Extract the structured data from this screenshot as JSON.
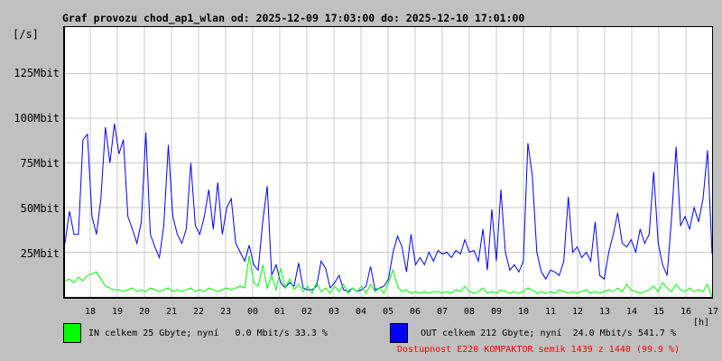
{
  "title": "Graf provozu chod_ap1_wlan od: 2025-12-09 17:03:00 do: 2025-12-10 17:01:00",
  "colors": {
    "background": "#c0c0c0",
    "plot_background": "#ffffff",
    "grid": "#c9c9c9",
    "border": "#000000",
    "in": "#00ff00",
    "out": "#0000ff",
    "availability_text": "#ff0000"
  },
  "y_axis": {
    "unit": "[/s]",
    "labels": [
      "125Mbit",
      "100Mbit",
      "75Mbit",
      "50Mbit",
      "25Mbit"
    ]
  },
  "x_axis": {
    "unit": "[h]",
    "labels": [
      "18",
      "19",
      "20",
      "21",
      "22",
      "23",
      "00",
      "01",
      "02",
      "03",
      "04",
      "05",
      "06",
      "07",
      "08",
      "09",
      "10",
      "11",
      "12",
      "13",
      "14",
      "15",
      "16",
      "17"
    ]
  },
  "legend": {
    "in_label": "IN celkem 25 Gbyte; nyní   0.0 Mbit/s 33.3 %",
    "out_label": "OUT celkem 212 Gbyte; nyní  24.0 Mbit/s 541.7 %",
    "availability": "Dostupnost E220 KOMPAKTOR semik 1439 z 1440 (99.9 %)"
  },
  "chart_data": {
    "type": "line",
    "title": "Graf provozu chod_ap1_wlan od: 2025-12-09 17:03:00 do: 2025-12-10 17:01:00",
    "xlabel": "[h]",
    "ylabel": "[/s]",
    "time_start": "2025-12-09 17:03:00",
    "time_end": "2025-12-10 17:01:00",
    "interval_minutes": 10,
    "ylim": [
      0,
      151
    ],
    "y_ticks_mbit": [
      25,
      50,
      75,
      100,
      125
    ],
    "x_tick_hours": [
      "18",
      "19",
      "20",
      "21",
      "22",
      "23",
      "00",
      "01",
      "02",
      "03",
      "04",
      "05",
      "06",
      "07",
      "08",
      "09",
      "10",
      "11",
      "12",
      "13",
      "14",
      "15",
      "16",
      "17"
    ],
    "grid": true,
    "legend_position": "bottom",
    "series": [
      {
        "name": "IN",
        "color": "#00ff00",
        "unit": "Mbit/s",
        "values": [
          9,
          10,
          8,
          11,
          9,
          12,
          13,
          14,
          10,
          6,
          5,
          4,
          4,
          3,
          4,
          5,
          3,
          4,
          3,
          5,
          4,
          3,
          4,
          5,
          3,
          4,
          3,
          4,
          5,
          3,
          4,
          3,
          5,
          4,
          3,
          4,
          5,
          4,
          5,
          6,
          5,
          23,
          8,
          6,
          18,
          5,
          12,
          4,
          16,
          5,
          10,
          4,
          7,
          3,
          6,
          2,
          8,
          3,
          5,
          2,
          6,
          3,
          7,
          2,
          5,
          3,
          6,
          2,
          7,
          3,
          5,
          2,
          8,
          15,
          6,
          3,
          4,
          2,
          3,
          2,
          3,
          2,
          3,
          3,
          2,
          3,
          2,
          4,
          3,
          6,
          3,
          2,
          3,
          5,
          2,
          3,
          2,
          4,
          3,
          2,
          3,
          2,
          3,
          5,
          4,
          2,
          3,
          2,
          3,
          2,
          4,
          3,
          2,
          3,
          2,
          3,
          4,
          2,
          3,
          2,
          3,
          4,
          3,
          5,
          3,
          7,
          4,
          3,
          2,
          3,
          4,
          6,
          3,
          8,
          5,
          3,
          7,
          4,
          3,
          5,
          3,
          4,
          3,
          7,
          0
        ]
      },
      {
        "name": "OUT",
        "color": "#0000ff",
        "unit": "Mbit/s",
        "values": [
          30,
          48,
          35,
          35,
          88,
          91,
          45,
          35,
          55,
          95,
          75,
          97,
          80,
          88,
          45,
          38,
          30,
          42,
          92,
          35,
          28,
          22,
          40,
          85,
          45,
          35,
          30,
          38,
          75,
          40,
          35,
          45,
          60,
          38,
          64,
          35,
          50,
          55,
          30,
          25,
          20,
          29,
          18,
          15,
          42,
          62,
          12,
          18,
          8,
          5,
          8,
          6,
          19,
          5,
          4,
          4,
          6,
          20,
          16,
          5,
          8,
          12,
          4,
          3,
          5,
          3,
          4,
          6,
          17,
          4,
          5,
          6,
          10,
          25,
          34,
          28,
          14,
          35,
          18,
          22,
          18,
          25,
          20,
          26,
          24,
          25,
          22,
          26,
          24,
          32,
          25,
          26,
          20,
          38,
          15,
          49,
          20,
          60,
          25,
          15,
          18,
          14,
          20,
          86,
          68,
          25,
          14,
          10,
          15,
          14,
          12,
          20,
          56,
          25,
          28,
          22,
          25,
          20,
          42,
          12,
          10,
          25,
          35,
          47,
          30,
          28,
          32,
          25,
          38,
          30,
          35,
          70,
          30,
          18,
          12,
          45,
          84,
          40,
          45,
          38,
          50,
          42,
          55,
          82,
          24
        ]
      }
    ]
  }
}
